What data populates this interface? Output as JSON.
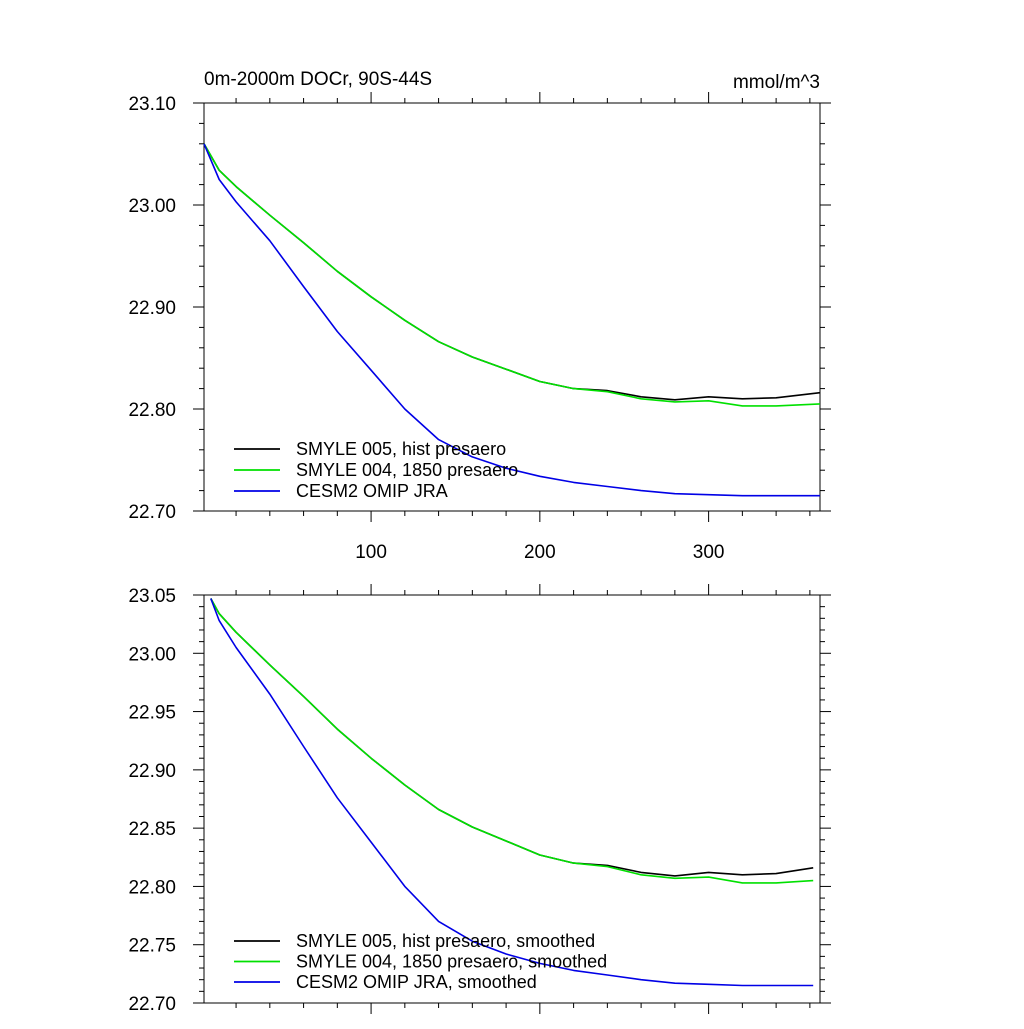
{
  "chart_data": [
    {
      "type": "line",
      "title": "0m-2000m DOCr, 90S-44S",
      "units": "mmol/m^3",
      "xlim": [
        1,
        366
      ],
      "ylim": [
        22.7,
        23.1
      ],
      "yticks": [
        "22.70",
        "22.80",
        "22.90",
        "23.00",
        "23.10"
      ],
      "xticks": [
        "100",
        "200",
        "300"
      ],
      "legend_position": "bottom-left",
      "series": [
        {
          "name": "SMYLE 005, hist presaero",
          "color": "#000000",
          "x": [
            1,
            10,
            20,
            40,
            60,
            80,
            100,
            120,
            140,
            160,
            180,
            200,
            220,
            240,
            260,
            280,
            300,
            320,
            340,
            366
          ],
          "values": [
            23.06,
            23.034,
            23.018,
            22.99,
            22.963,
            22.935,
            22.91,
            22.887,
            22.866,
            22.851,
            22.839,
            22.827,
            22.82,
            22.818,
            22.812,
            22.809,
            22.812,
            22.81,
            22.811,
            22.816
          ]
        },
        {
          "name": "SMYLE 004, 1850 presaero",
          "color": "#00e000",
          "x": [
            1,
            10,
            20,
            40,
            60,
            80,
            100,
            120,
            140,
            160,
            180,
            200,
            220,
            240,
            260,
            280,
            300,
            320,
            340,
            366
          ],
          "values": [
            23.06,
            23.034,
            23.018,
            22.99,
            22.963,
            22.935,
            22.91,
            22.887,
            22.866,
            22.851,
            22.839,
            22.827,
            22.82,
            22.817,
            22.81,
            22.807,
            22.808,
            22.803,
            22.803,
            22.805
          ]
        },
        {
          "name": "CESM2 OMIP JRA",
          "color": "#0000e6",
          "x": [
            1,
            10,
            20,
            40,
            60,
            80,
            100,
            120,
            140,
            160,
            180,
            200,
            220,
            240,
            260,
            280,
            300,
            320,
            340,
            366
          ],
          "values": [
            23.06,
            23.025,
            23.003,
            22.965,
            22.92,
            22.876,
            22.838,
            22.8,
            22.77,
            22.753,
            22.742,
            22.734,
            22.728,
            22.724,
            22.72,
            22.717,
            22.716,
            22.715,
            22.715,
            22.715
          ]
        }
      ]
    },
    {
      "type": "line",
      "title": "",
      "units": "",
      "xlim": [
        1,
        366
      ],
      "ylim": [
        22.7,
        23.05
      ],
      "yticks": [
        "22.70",
        "22.75",
        "22.80",
        "22.85",
        "22.90",
        "22.95",
        "23.00",
        "23.05"
      ],
      "xticks": [],
      "legend_position": "bottom-left",
      "series": [
        {
          "name": "SMYLE 005, hist presaero, smoothed",
          "color": "#000000",
          "x": [
            5,
            10,
            20,
            40,
            60,
            80,
            100,
            120,
            140,
            160,
            180,
            200,
            220,
            240,
            260,
            280,
            300,
            320,
            340,
            362
          ],
          "values": [
            23.047,
            23.034,
            23.018,
            22.99,
            22.963,
            22.935,
            22.91,
            22.887,
            22.866,
            22.851,
            22.839,
            22.827,
            22.82,
            22.818,
            22.812,
            22.809,
            22.812,
            22.81,
            22.811,
            22.816
          ]
        },
        {
          "name": "SMYLE 004, 1850 presaero, smoothed",
          "color": "#00e000",
          "x": [
            5,
            10,
            20,
            40,
            60,
            80,
            100,
            120,
            140,
            160,
            180,
            200,
            220,
            240,
            260,
            280,
            300,
            320,
            340,
            362
          ],
          "values": [
            23.047,
            23.034,
            23.018,
            22.99,
            22.963,
            22.935,
            22.91,
            22.887,
            22.866,
            22.851,
            22.839,
            22.827,
            22.82,
            22.817,
            22.81,
            22.807,
            22.808,
            22.803,
            22.803,
            22.805
          ]
        },
        {
          "name": "CESM2 OMIP JRA, smoothed",
          "color": "#0000e6",
          "x": [
            5,
            10,
            20,
            40,
            60,
            80,
            100,
            120,
            140,
            160,
            180,
            200,
            220,
            240,
            260,
            280,
            300,
            320,
            340,
            362
          ],
          "values": [
            23.047,
            23.028,
            23.005,
            22.965,
            22.92,
            22.876,
            22.838,
            22.8,
            22.77,
            22.753,
            22.742,
            22.734,
            22.728,
            22.724,
            22.72,
            22.717,
            22.716,
            22.715,
            22.715,
            22.715
          ]
        }
      ]
    }
  ]
}
